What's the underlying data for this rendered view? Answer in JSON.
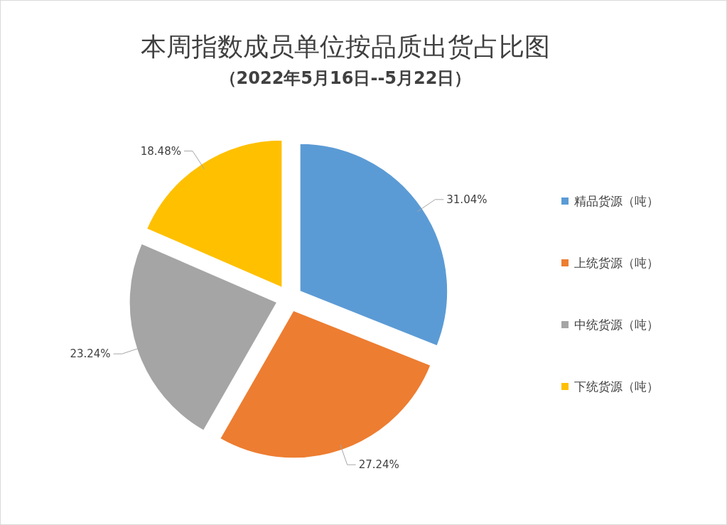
{
  "chart_data": {
    "type": "pie",
    "title": "本周指数成员单位按品质出货占比图",
    "subtitle": "（2022年5月16日--5月22日）",
    "categories": [
      "精品货源（吨）",
      "上统货源（吨）",
      "中统货源（吨）",
      "下统货源（吨）"
    ],
    "values": [
      31.04,
      27.24,
      23.24,
      18.48
    ],
    "colors": [
      "#5b9bd5",
      "#ed7d31",
      "#a5a5a5",
      "#ffc000"
    ],
    "value_labels": [
      "31.04%",
      "27.24%",
      "23.24%",
      "18.48%"
    ],
    "legend": "right"
  }
}
